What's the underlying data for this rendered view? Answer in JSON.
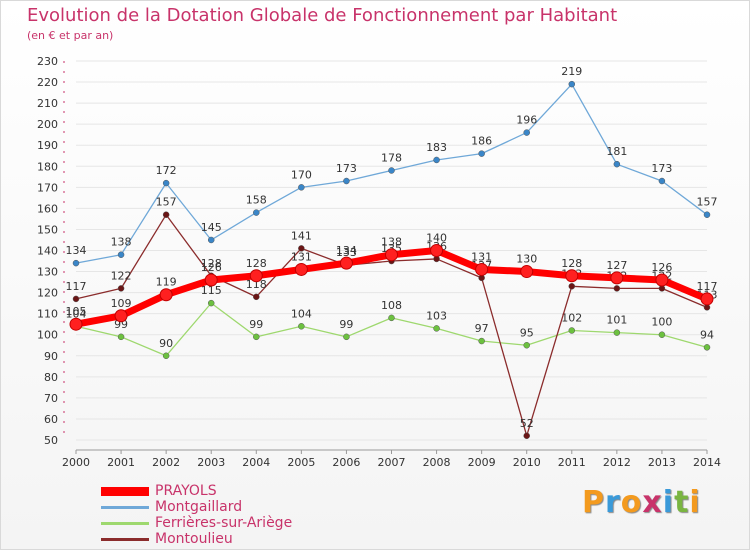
{
  "title": "Evolution de la Dotation Globale de Fonctionnement par Habitant",
  "subtitle": "(en € et par an)",
  "logo_text": "Proxiti",
  "colors": {
    "title": "#c8336a",
    "logo": [
      "#f39a1e",
      "#3a9ad9",
      "#f39a1e",
      "#c8336a",
      "#3a9ad9",
      "#7ab541",
      "#f39a1e"
    ]
  },
  "chart_data": {
    "type": "line",
    "title": "Evolution de la Dotation Globale de Fonctionnement par Habitant",
    "subtitle": "(en € et par an)",
    "xlabel": "",
    "ylabel": "",
    "ylim": [
      50,
      230
    ],
    "yticks": [
      50,
      60,
      70,
      80,
      90,
      100,
      110,
      120,
      130,
      140,
      150,
      160,
      170,
      180,
      190,
      200,
      210,
      220,
      230
    ],
    "grid": true,
    "legend_position": "bottom-left",
    "x": [
      "2000",
      "2001",
      "2002",
      "2003",
      "2004",
      "2005",
      "2006",
      "2007",
      "2008",
      "2009",
      "2010",
      "2011",
      "2012",
      "2013",
      "2014"
    ],
    "series": [
      {
        "name": "PRAYOLS",
        "color": "#ff0000",
        "markerColor": "#ff2020",
        "emphasis": true,
        "values": [
          105,
          109,
          119,
          126,
          128,
          131,
          134,
          138,
          140,
          131,
          130,
          128,
          127,
          126,
          117
        ]
      },
      {
        "name": "Montgaillard",
        "color": "#6fa8d8",
        "markerColor": "#3a86c8",
        "values": [
          134,
          138,
          172,
          145,
          158,
          170,
          173,
          178,
          183,
          186,
          196,
          219,
          181,
          173,
          157
        ]
      },
      {
        "name": "Ferrières-sur-Ariège",
        "color": "#9ed86e",
        "markerColor": "#6cc13f",
        "values": [
          104,
          99,
          90,
          115,
          99,
          104,
          99,
          108,
          103,
          97,
          95,
          102,
          101,
          100,
          94
        ]
      },
      {
        "name": "Montoulieu",
        "color": "#8b2c2c",
        "markerColor": "#6a1515",
        "values": [
          117,
          122,
          157,
          128,
          118,
          141,
          133,
          135,
          136,
          127,
          52,
          123,
          122,
          122,
          113
        ]
      }
    ]
  }
}
